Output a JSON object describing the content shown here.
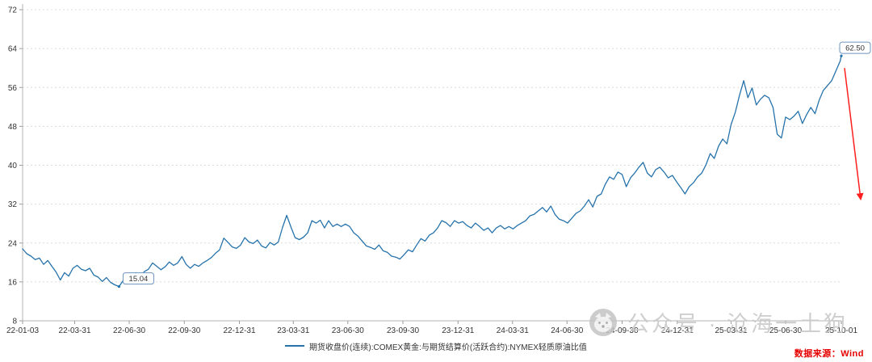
{
  "watermark": {
    "text": "公众号 · 沧海一土狗"
  },
  "source": {
    "text": "数据来源：Wind",
    "color": "#e60000"
  },
  "legend": {
    "label": "期货收盘价(连续):COMEX黄金:与期货结算价(活跃合约):NYMEX轻质原油比值",
    "color": "#2673ab"
  },
  "chart_data": {
    "type": "line",
    "title": "",
    "xlabel": "",
    "ylabel": "",
    "grid": true,
    "legend_position": "bottom",
    "line_color": "#2673ab",
    "ylim": [
      8,
      72
    ],
    "yticks": [
      8,
      16,
      24,
      32,
      40,
      48,
      56,
      64,
      72
    ],
    "xticks": [
      "22-01-03",
      "22-03-31",
      "22-06-30",
      "22-09-30",
      "22-12-31",
      "23-03-31",
      "23-06-30",
      "23-09-30",
      "23-12-31",
      "24-03-31",
      "24-06-30",
      "24-09-30",
      "24-12-31",
      "25-03-31",
      "25-06-30",
      "25-10-01"
    ],
    "x": [
      "22-01-03",
      "22-01-10",
      "22-01-17",
      "22-01-24",
      "22-01-31",
      "22-02-07",
      "22-02-14",
      "22-02-21",
      "22-02-28",
      "22-03-07",
      "22-03-14",
      "22-03-21",
      "22-03-28",
      "22-04-04",
      "22-04-11",
      "22-04-18",
      "22-04-25",
      "22-05-02",
      "22-05-09",
      "22-05-16",
      "22-05-23",
      "22-05-30",
      "22-06-06",
      "22-06-13",
      "22-06-20",
      "22-06-27",
      "22-07-04",
      "22-07-11",
      "22-07-18",
      "22-07-25",
      "22-08-01",
      "22-08-08",
      "22-08-15",
      "22-08-22",
      "22-08-29",
      "22-09-05",
      "22-09-12",
      "22-09-19",
      "22-09-26",
      "22-10-03",
      "22-10-10",
      "22-10-17",
      "22-10-24",
      "22-10-31",
      "22-11-07",
      "22-11-14",
      "22-11-21",
      "22-11-28",
      "22-12-05",
      "22-12-12",
      "22-12-19",
      "22-12-26",
      "23-01-02",
      "23-01-09",
      "23-01-16",
      "23-01-23",
      "23-01-30",
      "23-02-06",
      "23-02-13",
      "23-02-20",
      "23-02-27",
      "23-03-06",
      "23-03-13",
      "23-03-20",
      "23-03-27",
      "23-04-03",
      "23-04-10",
      "23-04-17",
      "23-04-24",
      "23-05-01",
      "23-05-08",
      "23-05-15",
      "23-05-22",
      "23-05-29",
      "23-06-05",
      "23-06-12",
      "23-06-19",
      "23-06-26",
      "23-07-03",
      "23-07-10",
      "23-07-17",
      "23-07-24",
      "23-07-31",
      "23-08-07",
      "23-08-14",
      "23-08-21",
      "23-08-28",
      "23-09-04",
      "23-09-11",
      "23-09-18",
      "23-09-25",
      "23-10-02",
      "23-10-09",
      "23-10-16",
      "23-10-23",
      "23-10-30",
      "23-11-06",
      "23-11-13",
      "23-11-20",
      "23-11-27",
      "23-12-04",
      "23-12-11",
      "23-12-18",
      "23-12-25",
      "24-01-01",
      "24-01-08",
      "24-01-15",
      "24-01-22",
      "24-01-29",
      "24-02-05",
      "24-02-12",
      "24-02-19",
      "24-02-26",
      "24-03-04",
      "24-03-11",
      "24-03-18",
      "24-03-25",
      "24-04-01",
      "24-04-08",
      "24-04-15",
      "24-04-22",
      "24-04-29",
      "24-05-06",
      "24-05-13",
      "24-05-20",
      "24-05-27",
      "24-06-03",
      "24-06-10",
      "24-06-17",
      "24-06-24",
      "24-07-01",
      "24-07-08",
      "24-07-15",
      "24-07-22",
      "24-07-29",
      "24-08-05",
      "24-08-12",
      "24-08-19",
      "24-08-26",
      "24-09-02",
      "24-09-09",
      "24-09-16",
      "24-09-23",
      "24-09-30",
      "24-10-07",
      "24-10-14",
      "24-10-21",
      "24-10-28",
      "24-11-04",
      "24-11-11",
      "24-11-18",
      "24-11-25",
      "24-12-02",
      "24-12-09",
      "24-12-16",
      "24-12-23",
      "24-12-30",
      "25-01-06",
      "25-01-13",
      "25-01-20",
      "25-01-27",
      "25-02-03",
      "25-02-10",
      "25-02-17",
      "25-02-24",
      "25-03-03",
      "25-03-10",
      "25-03-17",
      "25-03-24",
      "25-03-31",
      "25-04-07",
      "25-04-14",
      "25-04-21",
      "25-04-28",
      "25-05-05",
      "25-05-12",
      "25-05-19",
      "25-05-26",
      "25-06-02",
      "25-06-09",
      "25-06-16",
      "25-06-23",
      "25-06-30",
      "25-07-07",
      "25-07-14",
      "25-07-21",
      "25-07-28",
      "25-08-04",
      "25-08-11",
      "25-08-18",
      "25-08-25",
      "25-09-01",
      "25-09-08",
      "25-09-15",
      "25-09-22",
      "25-09-29",
      "25-10-01"
    ],
    "series": [
      {
        "name": "期货收盘价(连续):COMEX黄金:与期货结算价(活跃合约):NYMEX轻质原油比值",
        "values": [
          22.8,
          21.8,
          21.3,
          20.6,
          20.9,
          19.6,
          20.4,
          19.2,
          18.0,
          16.4,
          17.9,
          17.2,
          18.8,
          19.4,
          18.6,
          18.3,
          18.8,
          17.4,
          17.0,
          16.1,
          16.9,
          15.9,
          15.4,
          15.04,
          16.3,
          16.9,
          17.3,
          17.9,
          16.9,
          18.1,
          18.6,
          19.9,
          19.2,
          18.5,
          19.1,
          20.1,
          19.4,
          19.9,
          21.2,
          19.6,
          18.8,
          19.6,
          19.2,
          19.9,
          20.4,
          21.0,
          21.9,
          22.6,
          25.0,
          24.1,
          23.2,
          22.9,
          23.6,
          25.1,
          24.2,
          23.9,
          24.6,
          23.4,
          23.0,
          24.1,
          23.6,
          24.2,
          27.2,
          29.7,
          27.3,
          25.1,
          24.7,
          25.2,
          26.1,
          28.6,
          28.1,
          28.7,
          27.1,
          28.6,
          27.4,
          27.9,
          27.4,
          27.9,
          27.4,
          26.1,
          25.4,
          24.4,
          23.4,
          23.1,
          22.7,
          23.6,
          22.4,
          22.1,
          21.3,
          21.1,
          20.7,
          21.6,
          22.6,
          22.2,
          23.6,
          24.9,
          24.4,
          25.6,
          26.1,
          27.1,
          28.6,
          28.2,
          27.4,
          28.6,
          28.1,
          28.4,
          27.6,
          27.1,
          28.1,
          27.4,
          26.6,
          27.1,
          26.1,
          27.1,
          27.6,
          26.9,
          27.4,
          26.9,
          27.6,
          28.1,
          28.6,
          29.6,
          29.9,
          30.6,
          31.3,
          30.4,
          31.6,
          29.9,
          28.9,
          28.6,
          28.1,
          29.1,
          30.1,
          30.6,
          31.6,
          32.9,
          31.4,
          33.6,
          34.1,
          36.1,
          37.6,
          37.1,
          38.6,
          38.1,
          35.6,
          37.4,
          38.4,
          39.6,
          40.6,
          38.4,
          37.6,
          39.1,
          39.6,
          38.6,
          37.4,
          37.9,
          36.6,
          35.4,
          34.1,
          35.6,
          36.4,
          37.6,
          38.4,
          40.1,
          42.4,
          41.4,
          43.9,
          45.4,
          44.4,
          48.4,
          50.9,
          54.4,
          57.4,
          53.9,
          55.9,
          52.4,
          53.6,
          54.4,
          53.9,
          51.9,
          46.4,
          45.6,
          49.9,
          49.4,
          50.1,
          51.1,
          48.6,
          50.4,
          51.9,
          50.6,
          53.4,
          55.4,
          56.4,
          57.4,
          59.4,
          61.4,
          62.5
        ]
      }
    ],
    "annotations": [
      {
        "x": "22-06-13",
        "y": 15.04,
        "text": "15.04"
      },
      {
        "x": "25-10-01",
        "y": 62.5,
        "text": "62.50"
      }
    ],
    "forecast_arrow": {
      "from_y": 60.0,
      "to_y": 33.0,
      "color": "#ff1f1f"
    }
  }
}
